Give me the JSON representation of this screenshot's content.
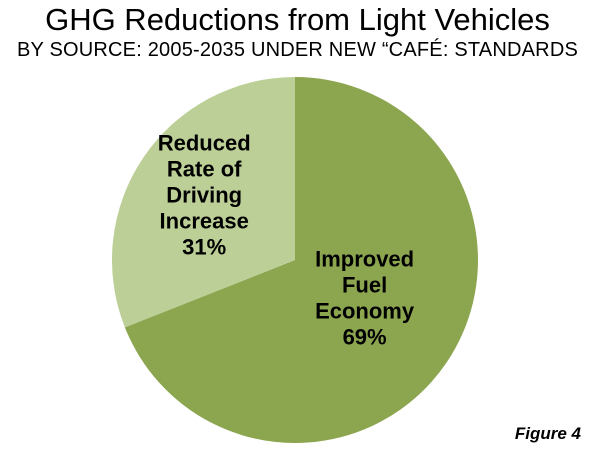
{
  "chart_data": {
    "type": "pie",
    "title": "GHG Reductions from Light Vehicles",
    "subtitle": "BY SOURCE: 2005-2035 UNDER NEW “CAFÉ: STANDARDS",
    "slices": [
      {
        "label_lines": [
          "Improved",
          "Fuel",
          "Economy"
        ],
        "value": 69,
        "value_label": "69%",
        "color": "#8ca650"
      },
      {
        "label_lines": [
          "Reduced",
          "Rate of",
          "Driving",
          "Increase"
        ],
        "value": 31,
        "value_label": "31%",
        "color": "#bccf97"
      }
    ]
  },
  "caption": "Figure 4"
}
